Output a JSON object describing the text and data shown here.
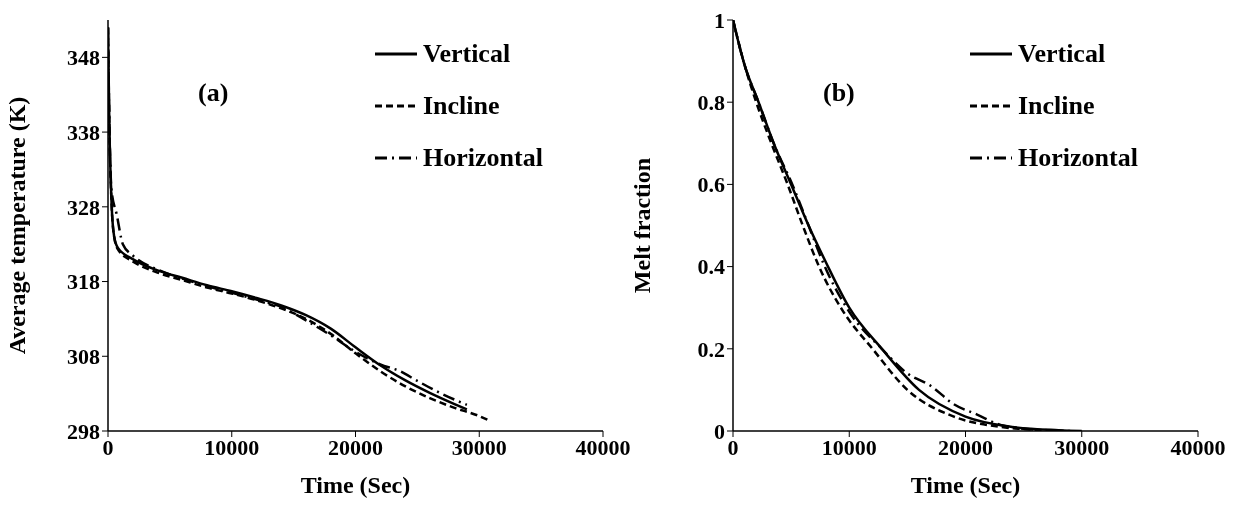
{
  "chart_data": [
    {
      "type": "line",
      "xlabel": "Time (Sec)",
      "ylabel": "Average temperature (K)",
      "annotations": [
        "(a)"
      ],
      "xlim": [
        0,
        40000
      ],
      "xticks": [
        0,
        10000,
        20000,
        30000,
        40000
      ],
      "ylim": [
        298,
        353
      ],
      "yticks": [
        298,
        308,
        318,
        328,
        338,
        348
      ],
      "legend": "top right",
      "marker": "none",
      "series": [
        {
          "name": "Vertical",
          "color": "#000000",
          "line_style": "solid",
          "x": [
            0,
            100,
            300,
            500,
            800,
            2000,
            4000,
            6000,
            8000,
            10000,
            12000,
            14000,
            16000,
            18000,
            20000,
            22000,
            24000,
            26000,
            28000,
            29000
          ],
          "values": [
            352,
            340,
            328,
            324,
            322.5,
            321,
            319.5,
            318.5,
            317.5,
            316.7,
            315.8,
            314.8,
            313.5,
            311.7,
            309.2,
            306.8,
            304.8,
            303.1,
            301.6,
            300.9
          ]
        },
        {
          "name": "Incline",
          "color": "#000000",
          "line_style": "dashed",
          "x": [
            0,
            100,
            300,
            500,
            800,
            2000,
            4000,
            6000,
            8000,
            10000,
            12000,
            14000,
            16000,
            18000,
            20000,
            22000,
            24000,
            26000,
            28000,
            30000,
            30800
          ],
          "values": [
            352,
            340,
            328,
            324,
            322.3,
            320.7,
            319.2,
            318.2,
            317.2,
            316.4,
            315.5,
            314.4,
            313,
            311,
            308.4,
            306,
            304,
            302.4,
            301.1,
            300,
            299.4
          ]
        },
        {
          "name": "Horizontal",
          "color": "#000000",
          "line_style": "dashdot",
          "x": [
            0,
            100,
            300,
            700,
            1200,
            2000,
            4000,
            6000,
            8000,
            10000,
            12000,
            14000,
            16000,
            18000,
            20000,
            22000,
            23600,
            25000,
            26700,
            28000,
            29000
          ],
          "values": [
            352,
            340,
            330,
            327,
            323,
            321.5,
            319.6,
            318.4,
            317.4,
            316.5,
            315.6,
            314.6,
            312.8,
            310.8,
            308.6,
            306.9,
            306,
            304.7,
            303.2,
            302.2,
            301.5
          ]
        }
      ]
    },
    {
      "type": "line",
      "xlabel": "Time (Sec)",
      "ylabel": "Melt fraction",
      "annotations": [
        "(b)"
      ],
      "xlim": [
        0,
        40000
      ],
      "xticks": [
        0,
        10000,
        20000,
        30000,
        40000
      ],
      "ylim": [
        0,
        1
      ],
      "yticks": [
        0,
        0.2,
        0.4,
        0.6,
        0.8,
        1
      ],
      "legend": "top right",
      "marker": "none",
      "series": [
        {
          "name": "Vertical",
          "color": "#000000",
          "line_style": "solid",
          "x": [
            0,
            1000,
            2200,
            3500,
            5000,
            6500,
            8000,
            10000,
            12800,
            16000,
            20000,
            24000,
            28000,
            30000
          ],
          "values": [
            1,
            0.89,
            0.8,
            0.7,
            0.6,
            0.5,
            0.41,
            0.3,
            0.2,
            0.1,
            0.035,
            0.01,
            0.002,
            0
          ]
        },
        {
          "name": "Incline",
          "color": "#000000",
          "line_style": "dashed",
          "x": [
            0,
            1000,
            2000,
            3300,
            4700,
            6000,
            7400,
            9500,
            12000,
            15000,
            19000,
            23000,
            27000,
            29000
          ],
          "values": [
            1,
            0.89,
            0.8,
            0.7,
            0.6,
            0.5,
            0.4,
            0.29,
            0.2,
            0.1,
            0.035,
            0.01,
            0.002,
            0
          ]
        },
        {
          "name": "Horizontal",
          "color": "#000000",
          "line_style": "dashdot",
          "x": [
            0,
            1000,
            2200,
            3500,
            5100,
            6500,
            7900,
            10000,
            12800,
            15000,
            17000,
            19000,
            21000,
            23000,
            26000
          ],
          "values": [
            1,
            0.89,
            0.8,
            0.7,
            0.6,
            0.5,
            0.4,
            0.29,
            0.2,
            0.14,
            0.11,
            0.065,
            0.04,
            0.015,
            0.003
          ]
        }
      ]
    }
  ]
}
